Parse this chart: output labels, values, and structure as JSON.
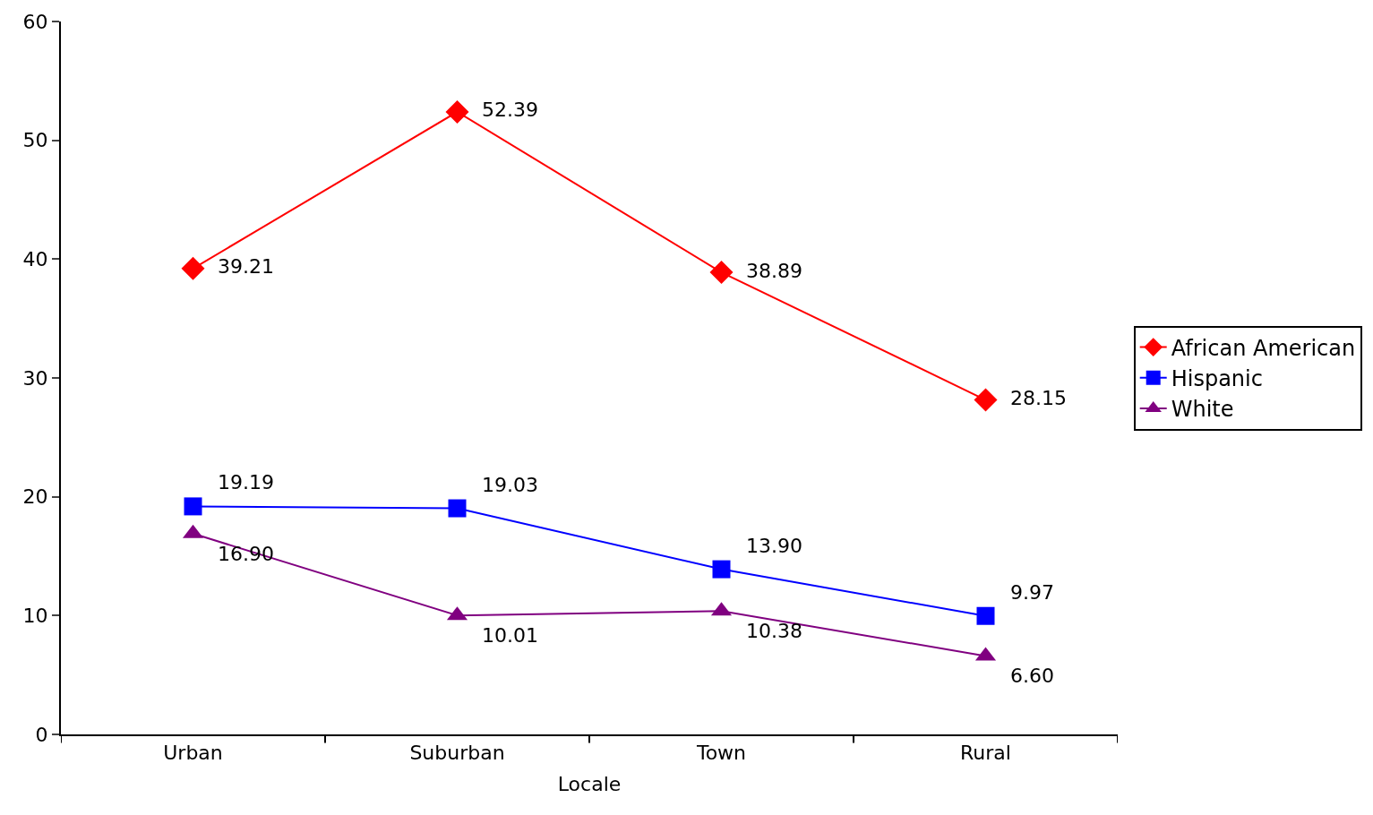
{
  "chart_data": {
    "type": "line",
    "xlabel": "Locale",
    "categories": [
      "Urban",
      "Suburban",
      "Town",
      "Rural"
    ],
    "series": [
      {
        "name": "African American",
        "color": "#ff0000",
        "marker": "diamond",
        "values": [
          39.21,
          52.39,
          38.89,
          28.15
        ],
        "value_labels": [
          "39.21",
          "52.39",
          "38.89",
          "28.15"
        ]
      },
      {
        "name": "Hispanic",
        "color": "#0000ff",
        "marker": "square",
        "values": [
          19.19,
          19.03,
          13.9,
          9.97
        ],
        "value_labels": [
          "19.19",
          "19.03",
          "13.90",
          "9.97"
        ]
      },
      {
        "name": "White",
        "color": "#800080",
        "marker": "triangle",
        "values": [
          16.9,
          10.01,
          10.38,
          6.6
        ],
        "value_labels": [
          "16.90",
          "10.01",
          "10.38",
          "6.60"
        ]
      }
    ],
    "ylim": [
      0,
      60
    ],
    "yticks": [
      0,
      10,
      20,
      30,
      40,
      50,
      60
    ],
    "legend": "right",
    "line_style": "solid"
  }
}
